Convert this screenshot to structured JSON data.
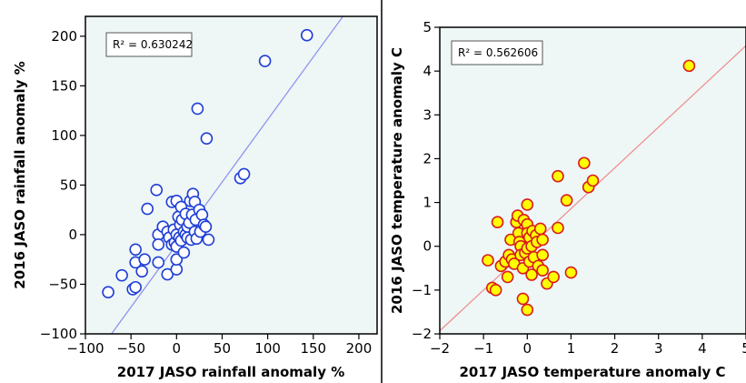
{
  "chart_data": [
    {
      "type": "scatter",
      "xlabel": "2017 JASO rainfall anomaly %",
      "ylabel": "2016 JASO rainfall anomaly %",
      "xlim": [
        -100,
        220
      ],
      "ylim": [
        -100,
        220
      ],
      "xticks": [
        -100,
        -50,
        0,
        50,
        100,
        150,
        200
      ],
      "yticks": [
        -100,
        -50,
        0,
        50,
        100,
        150,
        200
      ],
      "annotation": "R² = 0.630242",
      "grid": false,
      "regression_line": {
        "slope": 1.26,
        "intercept": -10
      },
      "colors": {
        "point_fill": "#ffffff",
        "point_stroke": "#1f3fd6",
        "line": "#8a8ff0",
        "plot_bg": "#eef6f6"
      },
      "points": [
        [
          -75,
          -58
        ],
        [
          -60,
          -41
        ],
        [
          -48,
          -55
        ],
        [
          -45,
          -53
        ],
        [
          -45,
          -15
        ],
        [
          -45,
          -28
        ],
        [
          -38,
          -37
        ],
        [
          -35,
          -25
        ],
        [
          -32,
          26
        ],
        [
          -22,
          45
        ],
        [
          -20,
          0
        ],
        [
          -20,
          -10
        ],
        [
          -20,
          -28
        ],
        [
          -15,
          8
        ],
        [
          -10,
          3
        ],
        [
          -10,
          -40
        ],
        [
          -8,
          -3
        ],
        [
          -5,
          -10
        ],
        [
          -5,
          33
        ],
        [
          -3,
          5
        ],
        [
          -2,
          -8
        ],
        [
          0,
          34
        ],
        [
          0,
          0
        ],
        [
          0,
          -12
        ],
        [
          0,
          -35
        ],
        [
          0,
          -25
        ],
        [
          2,
          18
        ],
        [
          3,
          -3
        ],
        [
          4,
          10
        ],
        [
          5,
          28
        ],
        [
          5,
          -6
        ],
        [
          6,
          15
        ],
        [
          8,
          3
        ],
        [
          8,
          -18
        ],
        [
          10,
          21
        ],
        [
          10,
          0
        ],
        [
          12,
          8
        ],
        [
          12,
          -3
        ],
        [
          14,
          12
        ],
        [
          15,
          34
        ],
        [
          16,
          -5
        ],
        [
          17,
          20
        ],
        [
          18,
          41
        ],
        [
          20,
          33
        ],
        [
          20,
          3
        ],
        [
          21,
          15
        ],
        [
          22,
          -4
        ],
        [
          23,
          127
        ],
        [
          25,
          25
        ],
        [
          26,
          3
        ],
        [
          28,
          20
        ],
        [
          30,
          10
        ],
        [
          32,
          8
        ],
        [
          33,
          97
        ],
        [
          35,
          -5
        ],
        [
          70,
          57
        ],
        [
          74,
          61
        ],
        [
          97,
          175
        ],
        [
          143,
          201
        ]
      ]
    },
    {
      "type": "scatter",
      "xlabel": "2017 JASO temperature anomaly C",
      "ylabel": "2016 JASO temperature anomaly C",
      "xlim": [
        -2,
        5
      ],
      "ylim": [
        -2,
        5
      ],
      "xticks": [
        -2,
        -1,
        0,
        1,
        2,
        3,
        4,
        5
      ],
      "yticks": [
        -2,
        -1,
        0,
        1,
        2,
        3,
        4,
        5
      ],
      "annotation": "R² = 0.562606",
      "grid": false,
      "regression_line": {
        "slope": 0.93,
        "intercept": -0.07
      },
      "colors": {
        "point_fill": "#ffff00",
        "point_stroke": "#d91c1c",
        "line": "#f08a8a",
        "plot_bg": "#eef6f6"
      },
      "points": [
        [
          -0.9,
          -0.32
        ],
        [
          -0.8,
          -0.95
        ],
        [
          -0.72,
          -1.0
        ],
        [
          -0.68,
          0.55
        ],
        [
          -0.6,
          -0.45
        ],
        [
          -0.5,
          -0.35
        ],
        [
          -0.45,
          -0.7
        ],
        [
          -0.42,
          -0.2
        ],
        [
          -0.38,
          0.15
        ],
        [
          -0.35,
          -0.3
        ],
        [
          -0.3,
          -0.4
        ],
        [
          -0.25,
          0.55
        ],
        [
          -0.22,
          0.7
        ],
        [
          -0.2,
          0.3
        ],
        [
          -0.18,
          0.1
        ],
        [
          -0.15,
          0.0
        ],
        [
          -0.15,
          -0.2
        ],
        [
          -0.1,
          -1.2
        ],
        [
          -0.1,
          -0.5
        ],
        [
          -0.08,
          0.6
        ],
        [
          -0.05,
          -0.15
        ],
        [
          0.0,
          0.95
        ],
        [
          0.0,
          0.5
        ],
        [
          0.0,
          0.3
        ],
        [
          0.0,
          -1.45
        ],
        [
          0.0,
          -0.05
        ],
        [
          0.05,
          0.2
        ],
        [
          0.05,
          -0.35
        ],
        [
          0.1,
          0.0
        ],
        [
          0.1,
          -0.65
        ],
        [
          0.12,
          0.35
        ],
        [
          0.15,
          -0.25
        ],
        [
          0.2,
          0.25
        ],
        [
          0.22,
          0.1
        ],
        [
          0.25,
          -0.45
        ],
        [
          0.3,
          0.4
        ],
        [
          0.35,
          0.15
        ],
        [
          0.35,
          -0.55
        ],
        [
          0.35,
          -0.2
        ],
        [
          0.45,
          -0.85
        ],
        [
          0.6,
          -0.7
        ],
        [
          0.7,
          1.6
        ],
        [
          0.7,
          0.42
        ],
        [
          0.9,
          1.05
        ],
        [
          1.0,
          -0.6
        ],
        [
          1.3,
          1.9
        ],
        [
          1.4,
          1.35
        ],
        [
          1.5,
          1.5
        ],
        [
          3.7,
          4.12
        ]
      ]
    }
  ]
}
